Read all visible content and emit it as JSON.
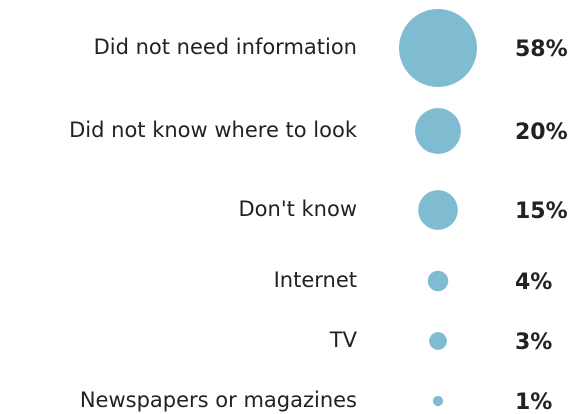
{
  "chart_data": {
    "type": "bubble",
    "categories": [
      "Did not need information",
      "Did not know where to look",
      "Don't know",
      "Internet",
      "TV",
      "Newspapers or magazines"
    ],
    "values": [
      58,
      20,
      15,
      4,
      3,
      1
    ],
    "value_labels": [
      "58%",
      "20%",
      "15%",
      "4%",
      "3%",
      "1%"
    ],
    "color": "#7fbcd2"
  }
}
